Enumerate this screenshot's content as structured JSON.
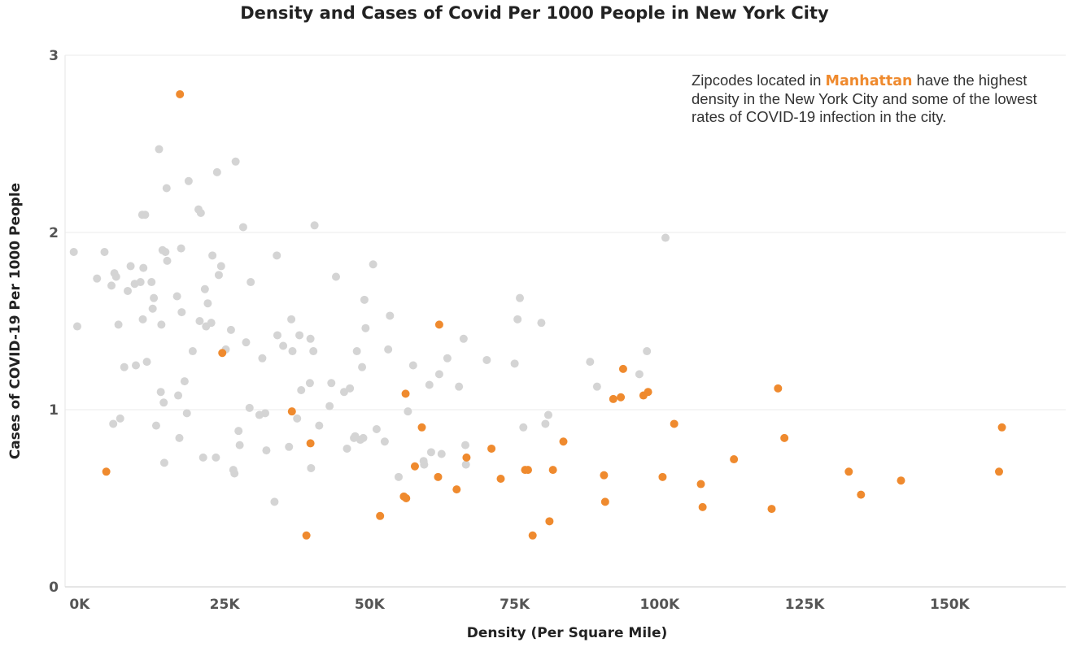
{
  "chart_data": {
    "type": "scatter",
    "title": "Density and Cases of Covid Per 1000 People in New York City",
    "xlabel": "Density (Per Square Mile)",
    "ylabel": "Cases of COVID-19 Per 1000 People",
    "xlim": [
      -2500,
      170000
    ],
    "ylim": [
      0,
      3
    ],
    "x_ticks": [
      {
        "value": 0,
        "label": "0K"
      },
      {
        "value": 25000,
        "label": "25K"
      },
      {
        "value": 50000,
        "label": "50K"
      },
      {
        "value": 75000,
        "label": "75K"
      },
      {
        "value": 100000,
        "label": "100K"
      },
      {
        "value": 125000,
        "label": "125K"
      },
      {
        "value": 150000,
        "label": "150K"
      }
    ],
    "y_ticks": [
      {
        "value": 0,
        "label": "0"
      },
      {
        "value": 1,
        "label": "1"
      },
      {
        "value": 2,
        "label": "2"
      },
      {
        "value": 3,
        "label": "3"
      }
    ],
    "grid": true,
    "colors": {
      "other": "#d4d4d4",
      "manhattan": "#ef8a2e"
    },
    "annotation": {
      "before": "Zipcodes located in ",
      "highlight": "Manhattan",
      "after": " have the highest density in the New York City and some of the lowest rates of COVID-19 infection in the city."
    },
    "series": [
      {
        "group": "other",
        "points": [
          [
            -1000,
            1.89
          ],
          [
            -400,
            1.47
          ],
          [
            3000,
            1.74
          ],
          [
            4300,
            1.89
          ],
          [
            5500,
            1.7
          ],
          [
            5800,
            0.92
          ],
          [
            6000,
            1.77
          ],
          [
            6300,
            1.75
          ],
          [
            6700,
            1.48
          ],
          [
            7000,
            0.95
          ],
          [
            7700,
            1.24
          ],
          [
            8300,
            1.67
          ],
          [
            8800,
            1.81
          ],
          [
            9500,
            1.71
          ],
          [
            9700,
            1.25
          ],
          [
            10500,
            1.72
          ],
          [
            10800,
            2.1
          ],
          [
            10900,
            1.51
          ],
          [
            11000,
            1.8
          ],
          [
            11300,
            2.1
          ],
          [
            11600,
            1.27
          ],
          [
            12400,
            1.72
          ],
          [
            12600,
            1.57
          ],
          [
            12800,
            1.63
          ],
          [
            13200,
            0.91
          ],
          [
            13700,
            2.47
          ],
          [
            14000,
            1.1
          ],
          [
            14300,
            1.9
          ],
          [
            14100,
            1.48
          ],
          [
            14500,
            1.04
          ],
          [
            14600,
            0.7
          ],
          [
            14800,
            1.89
          ],
          [
            15000,
            2.25
          ],
          [
            15100,
            1.84
          ],
          [
            16800,
            1.64
          ],
          [
            17000,
            1.08
          ],
          [
            17200,
            0.84
          ],
          [
            17500,
            1.91
          ],
          [
            17600,
            1.55
          ],
          [
            18100,
            1.16
          ],
          [
            18500,
            0.98
          ],
          [
            18800,
            2.29
          ],
          [
            19500,
            1.33
          ],
          [
            20500,
            2.13
          ],
          [
            20700,
            1.5
          ],
          [
            20900,
            2.11
          ],
          [
            21300,
            0.73
          ],
          [
            21600,
            1.68
          ],
          [
            21800,
            1.47
          ],
          [
            22100,
            1.6
          ],
          [
            22700,
            1.49
          ],
          [
            22900,
            1.87
          ],
          [
            23500,
            0.73
          ],
          [
            23700,
            2.34
          ],
          [
            24000,
            1.76
          ],
          [
            24400,
            1.81
          ],
          [
            25200,
            1.34
          ],
          [
            26100,
            1.45
          ],
          [
            26500,
            0.66
          ],
          [
            26700,
            0.64
          ],
          [
            26900,
            2.4
          ],
          [
            27400,
            0.88
          ],
          [
            27600,
            0.8
          ],
          [
            28200,
            2.03
          ],
          [
            28700,
            1.38
          ],
          [
            29300,
            1.01
          ],
          [
            29500,
            1.72
          ],
          [
            31000,
            0.97
          ],
          [
            31500,
            1.29
          ],
          [
            32000,
            0.98
          ],
          [
            32200,
            0.77
          ],
          [
            33600,
            0.48
          ],
          [
            34000,
            1.87
          ],
          [
            34100,
            1.42
          ],
          [
            35100,
            1.36
          ],
          [
            36100,
            0.79
          ],
          [
            36500,
            1.51
          ],
          [
            36700,
            1.33
          ],
          [
            37500,
            0.95
          ],
          [
            37900,
            1.42
          ],
          [
            38200,
            1.11
          ],
          [
            39700,
            1.15
          ],
          [
            39800,
            1.4
          ],
          [
            39900,
            0.67
          ],
          [
            40300,
            1.33
          ],
          [
            40500,
            2.04
          ],
          [
            41300,
            0.91
          ],
          [
            43100,
            1.02
          ],
          [
            43400,
            1.15
          ],
          [
            44200,
            1.75
          ],
          [
            45600,
            1.1
          ],
          [
            46100,
            0.78
          ],
          [
            46600,
            1.12
          ],
          [
            47300,
            0.84
          ],
          [
            47500,
            0.85
          ],
          [
            47800,
            1.33
          ],
          [
            48400,
            0.83
          ],
          [
            48700,
            1.24
          ],
          [
            48900,
            0.84
          ],
          [
            49100,
            1.62
          ],
          [
            49300,
            1.46
          ],
          [
            50600,
            1.82
          ],
          [
            51200,
            0.89
          ],
          [
            52600,
            0.82
          ],
          [
            53200,
            1.34
          ],
          [
            53500,
            1.53
          ],
          [
            55000,
            0.62
          ],
          [
            56600,
            0.99
          ],
          [
            57500,
            1.25
          ],
          [
            59300,
            0.71
          ],
          [
            59400,
            0.69
          ],
          [
            60300,
            1.14
          ],
          [
            60600,
            0.76
          ],
          [
            62000,
            1.2
          ],
          [
            62400,
            0.75
          ],
          [
            63400,
            1.29
          ],
          [
            65400,
            1.13
          ],
          [
            66200,
            1.4
          ],
          [
            66500,
            0.8
          ],
          [
            66600,
            0.69
          ],
          [
            70200,
            1.28
          ],
          [
            75000,
            1.26
          ],
          [
            75500,
            1.51
          ],
          [
            75900,
            1.63
          ],
          [
            76500,
            0.9
          ],
          [
            79600,
            1.49
          ],
          [
            80300,
            0.92
          ],
          [
            80800,
            0.97
          ],
          [
            88000,
            1.27
          ],
          [
            89200,
            1.13
          ],
          [
            96500,
            1.2
          ],
          [
            97800,
            1.33
          ],
          [
            101000,
            1.97
          ]
        ]
      },
      {
        "group": "manhattan",
        "points": [
          [
            4600,
            0.65
          ],
          [
            17300,
            2.78
          ],
          [
            24600,
            1.32
          ],
          [
            36600,
            0.99
          ],
          [
            39100,
            0.29
          ],
          [
            39800,
            0.81
          ],
          [
            51800,
            0.4
          ],
          [
            55900,
            0.51
          ],
          [
            56200,
            1.09
          ],
          [
            56300,
            0.5
          ],
          [
            57800,
            0.68
          ],
          [
            59000,
            0.9
          ],
          [
            61800,
            0.62
          ],
          [
            62000,
            1.48
          ],
          [
            65000,
            0.55
          ],
          [
            66700,
            0.73
          ],
          [
            71000,
            0.78
          ],
          [
            72600,
            0.61
          ],
          [
            76800,
            0.66
          ],
          [
            77300,
            0.66
          ],
          [
            78100,
            0.29
          ],
          [
            81000,
            0.37
          ],
          [
            81600,
            0.66
          ],
          [
            83400,
            0.82
          ],
          [
            90400,
            0.63
          ],
          [
            90600,
            0.48
          ],
          [
            92000,
            1.06
          ],
          [
            93300,
            1.07
          ],
          [
            93700,
            1.23
          ],
          [
            97200,
            1.08
          ],
          [
            98000,
            1.1
          ],
          [
            100500,
            0.62
          ],
          [
            102500,
            0.92
          ],
          [
            107100,
            0.58
          ],
          [
            107400,
            0.45
          ],
          [
            112800,
            0.72
          ],
          [
            119300,
            0.44
          ],
          [
            120400,
            1.12
          ],
          [
            121500,
            0.84
          ],
          [
            132600,
            0.65
          ],
          [
            134700,
            0.52
          ],
          [
            141600,
            0.6
          ],
          [
            158500,
            0.65
          ],
          [
            159000,
            0.9
          ]
        ]
      }
    ]
  }
}
